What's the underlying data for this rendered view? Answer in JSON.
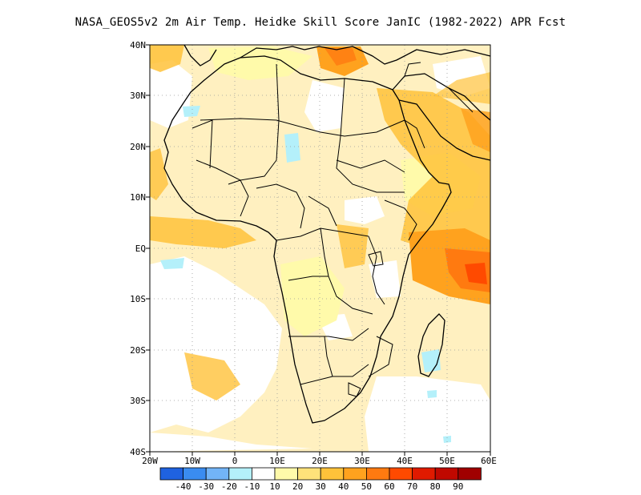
{
  "title": "NASA_GEOS5v2  2m Air Temp. Heidke Skill Score JanIC (1982-2022) APR Fcst",
  "lat_labels": [
    "40N",
    "30N",
    "20N",
    "10N",
    "EQ",
    "10S",
    "20S",
    "30S",
    "40S"
  ],
  "lon_labels": [
    "20W",
    "10W",
    "0",
    "10E",
    "20E",
    "30E",
    "40E",
    "50E",
    "60E"
  ],
  "colorbar": {
    "colors": [
      "#1f62e0",
      "#3a8cf0",
      "#72b4f7",
      "#b4f0fa",
      "#ffffff",
      "#fffaaa",
      "#ffe27a",
      "#ffc23a",
      "#ffa21e",
      "#ff7a10",
      "#ff4a00",
      "#e01a00",
      "#c00800",
      "#a00000"
    ],
    "labels": [
      "-40",
      "-30",
      "-20",
      "-10",
      "10",
      "20",
      "30",
      "40",
      "50",
      "60",
      "70",
      "80",
      "90"
    ]
  }
}
